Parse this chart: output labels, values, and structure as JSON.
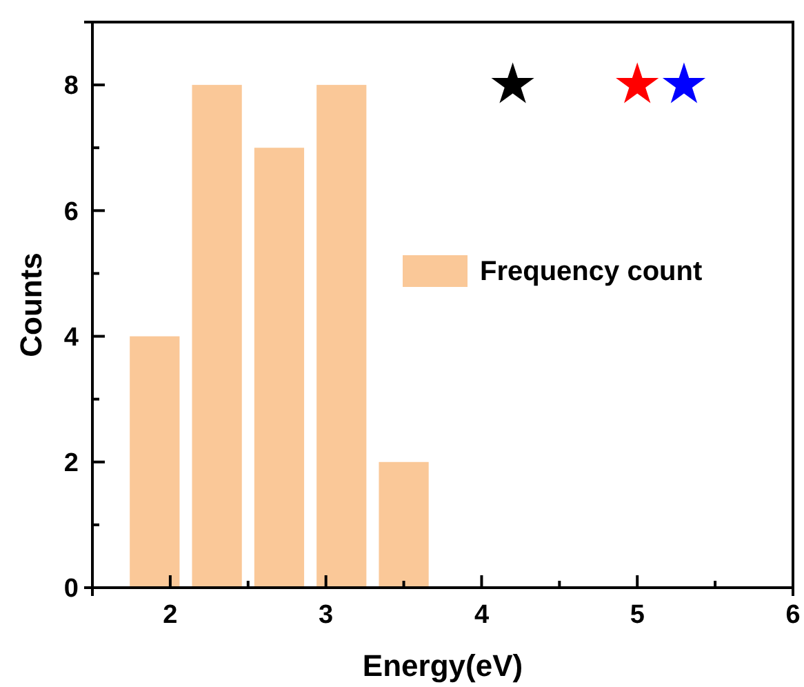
{
  "chart_data": {
    "type": "histogram",
    "xlabel": "Energy(eV)",
    "ylabel": "Counts",
    "bins": [
      1.7,
      2.1,
      2.5,
      2.9,
      3.3,
      3.7
    ],
    "series": [
      {
        "name": "Frequency count",
        "color": "#fac898",
        "values": [
          4,
          8,
          7,
          8,
          2
        ]
      },
      {
        "type": "scatter",
        "x": [
          4.2,
          5.0,
          5.3
        ],
        "values": [
          8,
          8,
          8
        ],
        "colors": [
          "#000000",
          "#ff0000",
          "#0000ff"
        ],
        "marker": "star"
      }
    ],
    "xlim": [
      1.5,
      6
    ],
    "xticks": [
      2,
      {
        "value": 2.5,
        "label": null
      },
      3,
      {
        "value": 3.5,
        "label": null
      },
      4,
      {
        "value": 4.5,
        "label": null
      },
      5,
      {
        "value": 5.5,
        "label": null
      },
      6
    ],
    "ylim": [
      0,
      9
    ],
    "yticks": [
      0,
      {
        "value": 1,
        "label": null
      },
      2,
      {
        "value": 3,
        "label": null
      },
      4,
      {
        "value": 5,
        "label": null
      },
      6,
      {
        "value": 7,
        "label": null
      },
      8
    ],
    "grid": false,
    "legend": "right"
  }
}
